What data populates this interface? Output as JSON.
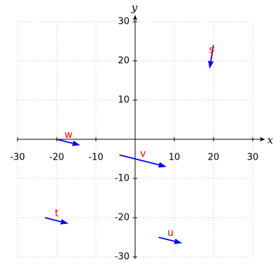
{
  "chart_data": {
    "type": "quiver",
    "x_label": "x",
    "y_label": "y",
    "xlim": [
      -30,
      30
    ],
    "ylim": [
      -30,
      30
    ],
    "xticks": [
      -30,
      -20,
      -10,
      10,
      20,
      30
    ],
    "yticks": [
      -30,
      -20,
      -10,
      10,
      20,
      30
    ],
    "grid": true,
    "color": "#0000ff",
    "label_color": "#ff0000",
    "vectors": {
      "names": [
        "s",
        "w",
        "v",
        "t",
        "u"
      ],
      "x": [
        20,
        -20,
        -4,
        -23,
        6
      ],
      "y": [
        24,
        0,
        -4,
        -20,
        -25
      ],
      "u": [
        -1,
        6,
        12,
        6,
        6
      ],
      "v": [
        -6,
        -1.5,
        -3,
        -1.5,
        -1.5
      ]
    }
  }
}
